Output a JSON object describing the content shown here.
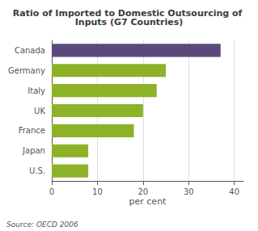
{
  "chart_data": {
    "type": "bar",
    "orientation": "horizontal",
    "title": "Ratio of Imported to Domestic Outsourcing of Inputs (G7 Countries)",
    "categories": [
      "Canada",
      "Germany",
      "Italy",
      "UK",
      "France",
      "Japan",
      "U.S."
    ],
    "values": [
      37.0,
      25.0,
      23.0,
      20.0,
      18.0,
      8.0,
      8.0
    ],
    "colors": [
      "#5a4a7a",
      "#8db228",
      "#8db228",
      "#8db228",
      "#8db228",
      "#8db228",
      "#8db228"
    ],
    "xlabel": "per cent",
    "annotations": [
      "Source: OECD 2006"
    ],
    "xlim": [
      0,
      42
    ],
    "xticks": [
      0,
      10,
      20,
      30,
      40
    ],
    "grid": true
  }
}
